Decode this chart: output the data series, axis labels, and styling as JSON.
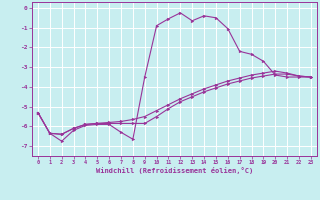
{
  "xlabel": "Windchill (Refroidissement éolien,°C)",
  "background_color": "#c8eef0",
  "line_color": "#993399",
  "grid_color": "#ffffff",
  "xlim": [
    -0.5,
    23.5
  ],
  "ylim": [
    -7.5,
    0.3
  ],
  "xticks": [
    0,
    1,
    2,
    3,
    4,
    5,
    6,
    7,
    8,
    9,
    10,
    11,
    12,
    13,
    14,
    15,
    16,
    17,
    18,
    19,
    20,
    21,
    22,
    23
  ],
  "yticks": [
    0,
    -1,
    -2,
    -3,
    -4,
    -5,
    -6,
    -7
  ],
  "line1_x": [
    0,
    1,
    2,
    3,
    4,
    5,
    6,
    7,
    8,
    9,
    10,
    11,
    12,
    13,
    14,
    15,
    16,
    17,
    18,
    19,
    20,
    21,
    22,
    23
  ],
  "line1_y": [
    -5.3,
    -6.35,
    -6.75,
    -6.2,
    -5.95,
    -5.9,
    -5.9,
    -6.3,
    -6.65,
    -3.5,
    -0.9,
    -0.55,
    -0.25,
    -0.65,
    -0.4,
    -0.5,
    -1.05,
    -2.2,
    -2.35,
    -2.7,
    -3.4,
    -3.5,
    -3.5,
    -3.5
  ],
  "line2_x": [
    0,
    1,
    2,
    3,
    4,
    5,
    6,
    7,
    8,
    9,
    10,
    11,
    12,
    13,
    14,
    15,
    16,
    17,
    18,
    19,
    20,
    21,
    22,
    23
  ],
  "line2_y": [
    -5.3,
    -6.35,
    -6.4,
    -6.1,
    -5.9,
    -5.85,
    -5.85,
    -5.85,
    -5.85,
    -5.85,
    -5.5,
    -5.1,
    -4.75,
    -4.5,
    -4.25,
    -4.05,
    -3.85,
    -3.7,
    -3.55,
    -3.45,
    -3.35,
    -3.35,
    -3.45,
    -3.5
  ],
  "line3_x": [
    0,
    1,
    2,
    3,
    4,
    5,
    6,
    7,
    8,
    9,
    10,
    11,
    12,
    13,
    14,
    15,
    16,
    17,
    18,
    19,
    20,
    21,
    22,
    23
  ],
  "line3_y": [
    -5.3,
    -6.35,
    -6.4,
    -6.1,
    -5.9,
    -5.85,
    -5.8,
    -5.75,
    -5.65,
    -5.5,
    -5.2,
    -4.9,
    -4.6,
    -4.35,
    -4.1,
    -3.9,
    -3.7,
    -3.55,
    -3.4,
    -3.3,
    -3.2,
    -3.3,
    -3.45,
    -3.5
  ]
}
